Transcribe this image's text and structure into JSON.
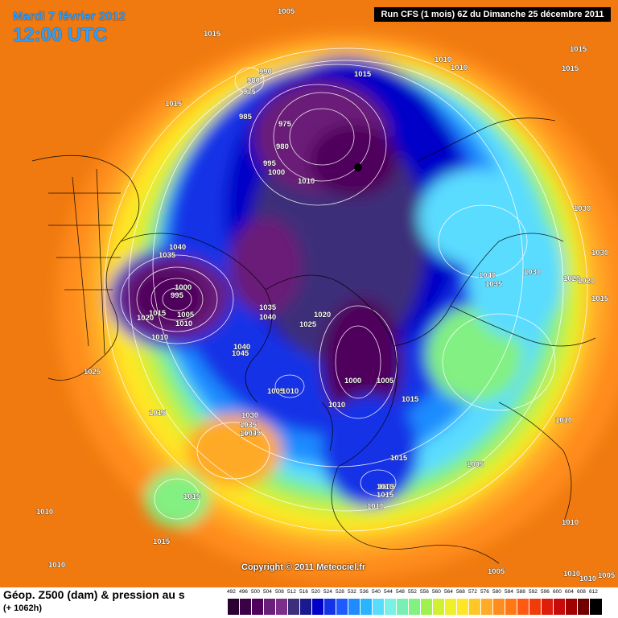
{
  "header": {
    "date": "Mardi 7 février 2012",
    "time": "12:00 UTC",
    "run": "Run CFS (1 mois) 6Z du Dimanche 25 décembre 2011"
  },
  "copyright": "Copyright © 2011 Meteociel.fr",
  "footer": {
    "title": "Géop. Z500 (dam) & pression au s",
    "subtitle": "(+ 1062h)"
  },
  "legend": {
    "ticks": [
      "492",
      "496",
      "500",
      "504",
      "508",
      "512",
      "516",
      "520",
      "524",
      "528",
      "532",
      "536",
      "540",
      "544",
      "548",
      "552",
      "556",
      "560",
      "564",
      "568",
      "572",
      "576",
      "580",
      "584",
      "588",
      "592",
      "596",
      "600",
      "604",
      "608",
      "612"
    ],
    "colors": [
      "#2a0030",
      "#3c0046",
      "#50005c",
      "#6a1f78",
      "#7b2f8a",
      "#3c2f7a",
      "#1a1a90",
      "#0000c8",
      "#1432e6",
      "#1e5aff",
      "#1e8cff",
      "#2ab4ff",
      "#5adcff",
      "#7af0e6",
      "#78f0b4",
      "#82f082",
      "#a0f050",
      "#d2f032",
      "#f0f028",
      "#ffe628",
      "#ffc828",
      "#ffaa28",
      "#ff8c1e",
      "#ff7814",
      "#ff5a14",
      "#f03c0a",
      "#dc1e0a",
      "#c80a0a",
      "#a00000",
      "#700000",
      "#000000"
    ]
  },
  "pressure_labels": [
    "1005",
    "1015",
    "1015",
    "1010",
    "1010",
    "1015",
    "1015",
    "1015",
    "990",
    "980",
    "975",
    "985",
    "975",
    "980",
    "995",
    "1000",
    "1010",
    "1040",
    "1035",
    "1000",
    "995",
    "1015",
    "1005",
    "1010",
    "1020",
    "1010",
    "1035",
    "1040",
    "1040",
    "1045",
    "1020",
    "1025",
    "1025",
    "1030",
    "1030",
    "1040",
    "1035",
    "1030",
    "1020",
    "1020",
    "1015",
    "1005",
    "1010",
    "1000",
    "1005",
    "1015",
    "1010",
    "1005",
    "1030",
    "1035",
    "1040",
    "1045",
    "1015",
    "1015",
    "1015",
    "1010",
    "1010",
    "1010",
    "1005",
    "1015",
    "1010",
    "1015",
    "1010",
    "1010",
    "1005",
    "1010",
    "1010",
    "1005"
  ]
}
